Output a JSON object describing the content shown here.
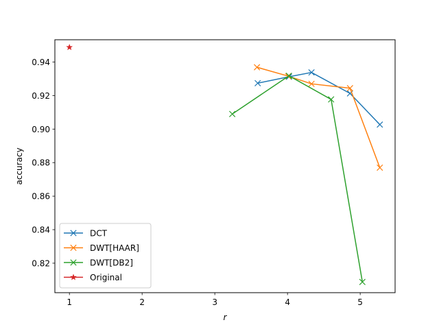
{
  "chart_data": {
    "type": "line",
    "xlabel": "r",
    "ylabel": "accuracy",
    "xlim": [
      0.8,
      5.48
    ],
    "ylim": [
      0.8024,
      0.9533
    ],
    "x_ticks": [
      "1",
      "2",
      "3",
      "4",
      "5"
    ],
    "y_ticks": [
      "0.82",
      "0.84",
      "0.86",
      "0.88",
      "0.90",
      "0.92",
      "0.94"
    ],
    "legend_position": "lower left",
    "series": [
      {
        "name": "DCT",
        "color": "#1f77b4",
        "marker": "x",
        "x": [
          3.59,
          4.02,
          4.33,
          4.86,
          5.27
        ],
        "y": [
          0.9274,
          0.9312,
          0.9338,
          0.9213,
          0.9027
        ]
      },
      {
        "name": "DWT[HAAR]",
        "color": "#ff7f0e",
        "marker": "x",
        "x": [
          3.58,
          4.01,
          4.33,
          4.86,
          5.27
        ],
        "y": [
          0.9369,
          0.9316,
          0.927,
          0.9244,
          0.877
        ]
      },
      {
        "name": "DWT[DB2]",
        "color": "#2ca02c",
        "marker": "x",
        "x": [
          3.24,
          4.02,
          4.6,
          5.03
        ],
        "y": [
          0.909,
          0.9318,
          0.9177,
          0.8088
        ]
      },
      {
        "name": "Original",
        "color": "#d62728",
        "marker": "star",
        "x": [
          1.0
        ],
        "y": [
          0.9488
        ]
      }
    ]
  }
}
